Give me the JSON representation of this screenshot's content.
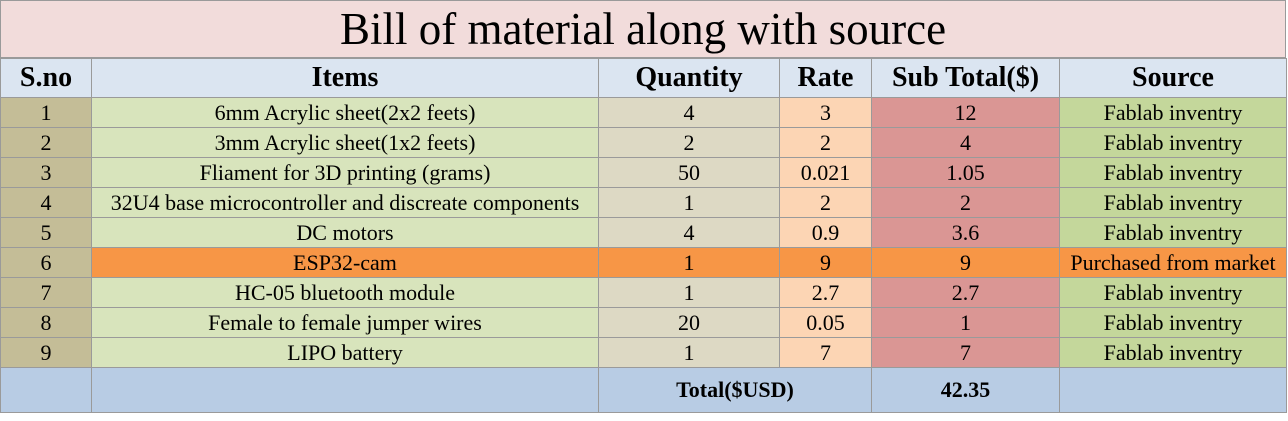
{
  "title": "Bill of material along with source",
  "headers": {
    "sno": "S.no",
    "items": "Items",
    "quantity": "Quantity",
    "rate": "Rate",
    "subtotal": "Sub Total($)",
    "source": "Source"
  },
  "rows": [
    {
      "sno": "1",
      "item": "6mm Acrylic sheet(2x2 feets)",
      "quantity": "4",
      "rate": "3",
      "subtotal": "12",
      "source": "Fablab inventry"
    },
    {
      "sno": "2",
      "item": "3mm Acrylic sheet(1x2 feets)",
      "quantity": "2",
      "rate": "2",
      "subtotal": "4",
      "source": "Fablab inventry"
    },
    {
      "sno": "3",
      "item": "Fliament for 3D printing (grams)",
      "quantity": "50",
      "rate": "0.021",
      "subtotal": "1.05",
      "source": "Fablab inventry"
    },
    {
      "sno": "4",
      "item": "32U4 base microcontroller and discreate components",
      "quantity": "1",
      "rate": "2",
      "subtotal": "2",
      "source": "Fablab inventry"
    },
    {
      "sno": "5",
      "item": "DC motors",
      "quantity": "4",
      "rate": "0.9",
      "subtotal": "3.6",
      "source": "Fablab inventry"
    },
    {
      "sno": "6",
      "item": "ESP32-cam",
      "quantity": "1",
      "rate": "9",
      "subtotal": "9",
      "source": "Purchased from market"
    },
    {
      "sno": "7",
      "item": "HC-05 bluetooth module",
      "quantity": "1",
      "rate": "2.7",
      "subtotal": "2.7",
      "source": "Fablab inventry"
    },
    {
      "sno": "8",
      "item": "Female to female jumper wires",
      "quantity": "20",
      "rate": "0.05",
      "subtotal": "1",
      "source": "Fablab inventry"
    },
    {
      "sno": "9",
      "item": "LIPO battery",
      "quantity": "1",
      "rate": "7",
      "subtotal": "7",
      "source": "Fablab inventry"
    }
  ],
  "total": {
    "label": "Total($USD)",
    "value": "42.35"
  },
  "colors": {
    "title_bg": "#f2dcdb",
    "header_bg": "#dbe5f1",
    "sno_bg": "#c4bd97",
    "item_bg": "#d8e4bc",
    "quantity_bg": "#ddd9c4",
    "rate_bg": "#fcd5b4",
    "subtotal_bg": "#da9694",
    "source_bg": "#c4d79b",
    "highlight_bg": "#f79646",
    "total_bg": "#b8cce4"
  }
}
